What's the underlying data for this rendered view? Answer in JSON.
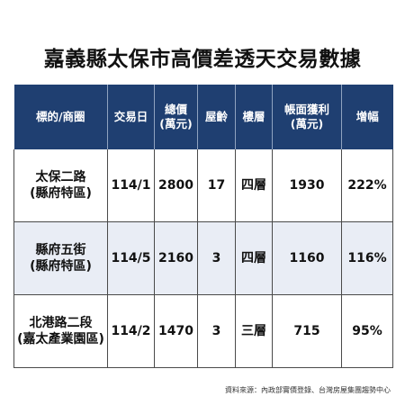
{
  "title": "嘉義縣太保市高價差透天交易數據",
  "table": {
    "headers": [
      {
        "line1": "標的/商圈",
        "line2": ""
      },
      {
        "line1": "交易日",
        "line2": ""
      },
      {
        "line1": "總價",
        "line2": "(萬元)"
      },
      {
        "line1": "屋齡",
        "line2": ""
      },
      {
        "line1": "樓層",
        "line2": ""
      },
      {
        "line1": "帳面獲利",
        "line2": "(萬元)"
      },
      {
        "line1": "增幅",
        "line2": ""
      }
    ],
    "rows": [
      {
        "name": "太保二路",
        "area": "(縣府特區)",
        "date": "114/1",
        "price": "2800",
        "age": "17",
        "floors": "四層",
        "profit": "1930",
        "increase": "222%"
      },
      {
        "name": "縣府五街",
        "area": "(縣府特區)",
        "date": "114/5",
        "price": "2160",
        "age": "3",
        "floors": "四層",
        "profit": "1160",
        "increase": "116%"
      },
      {
        "name": "北港路二段",
        "area": "(嘉太產業園區)",
        "date": "114/2",
        "price": "1470",
        "age": "3",
        "floors": "三層",
        "profit": "715",
        "increase": "95%"
      }
    ]
  },
  "footer": {
    "source": "資料來源：內政部實價登錄、台灣房屋集團趨勢中心"
  },
  "colors": {
    "header_bg": "#1f3f71",
    "row_alt_bg": "#e9edf5"
  }
}
